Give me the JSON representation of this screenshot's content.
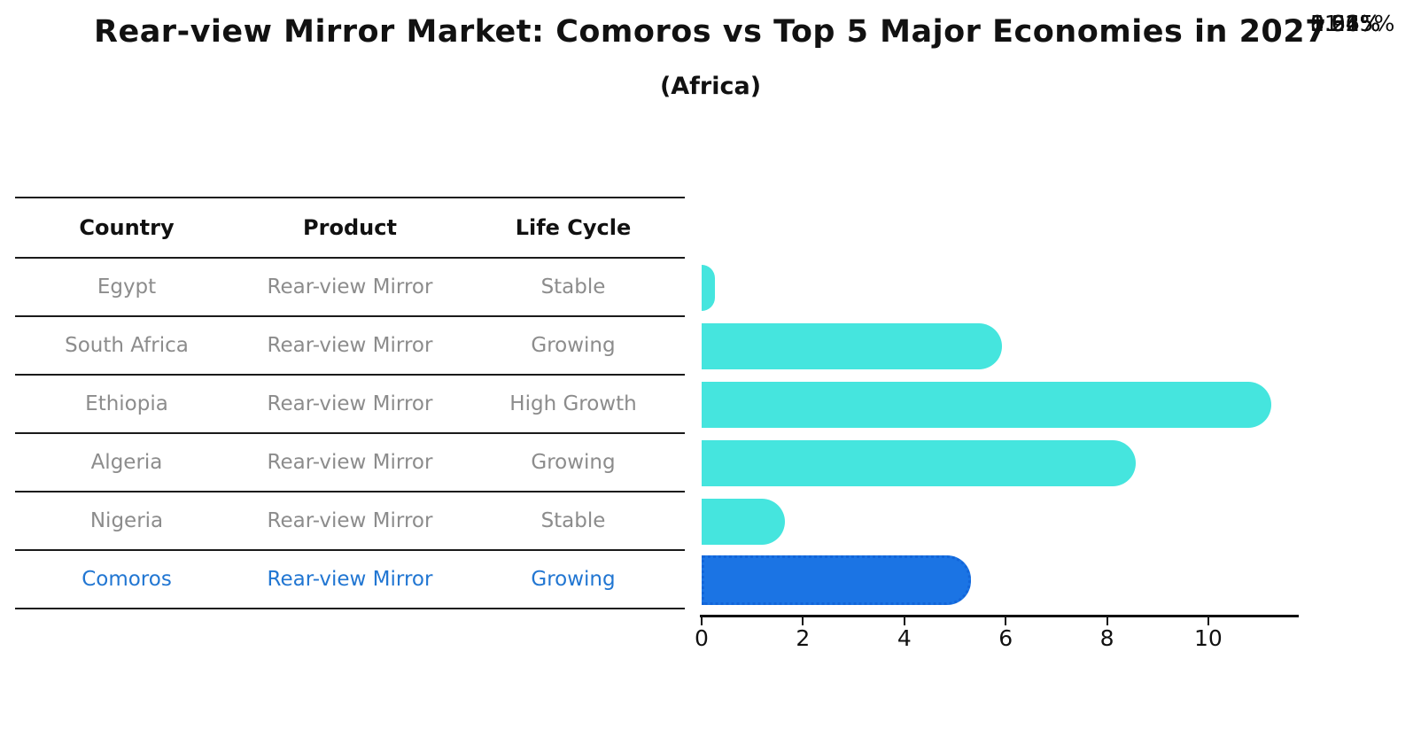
{
  "title": "Rear-view Mirror Market: Comoros vs Top 5 Major Economies in 2027",
  "subtitle": "(Africa)",
  "table": {
    "headers": [
      "Country",
      "Product",
      "Life Cycle"
    ],
    "rows": [
      {
        "country": "Egypt",
        "product": "Rear-view Mirror",
        "life_cycle": "Stable",
        "highlight": false
      },
      {
        "country": "South Africa",
        "product": "Rear-view Mirror",
        "life_cycle": "Growing",
        "highlight": false
      },
      {
        "country": "Ethiopia",
        "product": "Rear-view Mirror",
        "life_cycle": "High Growth",
        "highlight": false
      },
      {
        "country": "Algeria",
        "product": "Rear-view Mirror",
        "life_cycle": "Growing",
        "highlight": false
      },
      {
        "country": "Nigeria",
        "product": "Rear-view Mirror",
        "life_cycle": "Stable",
        "highlight": false
      },
      {
        "country": "Comoros",
        "product": "Rear-view Mirror",
        "life_cycle": "Growing",
        "highlight": true
      }
    ]
  },
  "chart_data": {
    "type": "bar",
    "orientation": "horizontal",
    "title": "Rear-view Mirror Market: Comoros vs Top 5 Major Economies in 2027",
    "subtitle": "(Africa)",
    "categories": [
      "Egypt",
      "South Africa",
      "Ethiopia",
      "Algeria",
      "Nigeria",
      "Comoros"
    ],
    "values": [
      0.26,
      5.92,
      11.25,
      8.56,
      1.64,
      5.31
    ],
    "labels": [
      "0.26%",
      "5.92%",
      "11.25%",
      "8.56%",
      "1.64%",
      "5.31%"
    ],
    "unit": "percent",
    "x_ticks": [
      0,
      2,
      4,
      6,
      8,
      10
    ],
    "xlim": [
      0,
      11.75
    ],
    "grid": false,
    "legend": "none",
    "highlight_index": 5,
    "highlight_category": "Comoros"
  },
  "colors": {
    "bar": "#45e5de",
    "bar-hl": "#1b74e4",
    "bar-hl-border": "#1265d9",
    "accent-text": "#2176d2",
    "muted": "#8c8c8c",
    "rule": "#1a1a1a"
  }
}
